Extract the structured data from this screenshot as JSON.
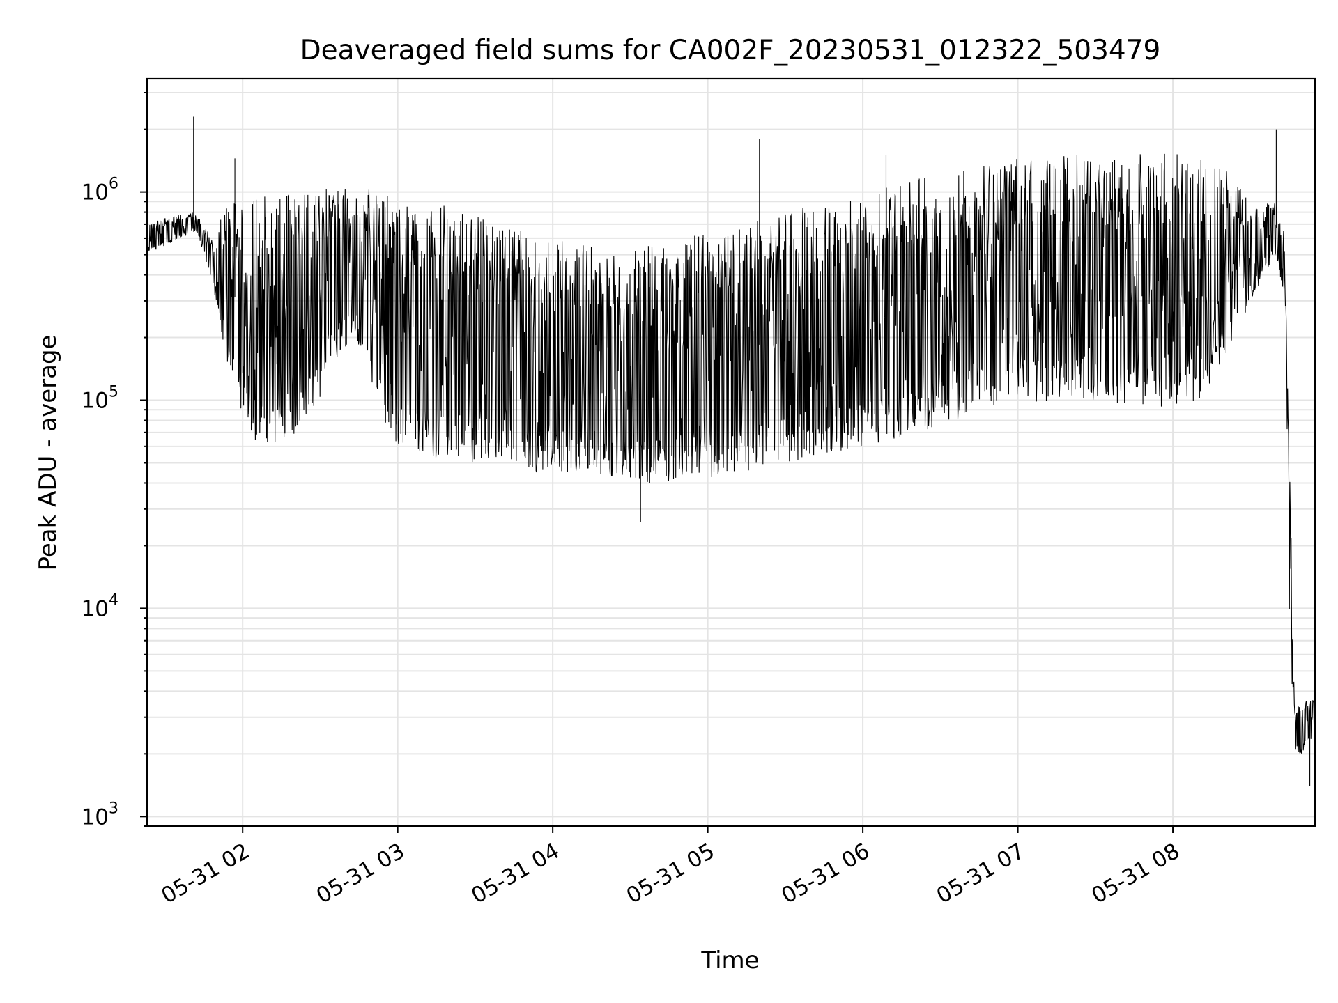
{
  "chart_data": {
    "type": "line",
    "title": "Deaveraged field sums for CA002F_20230531_012322_503479",
    "xlabel": "Time",
    "ylabel": "Peak ADU - average",
    "yscale": "log",
    "ylim": [
      900,
      3500000
    ],
    "xlim": [
      "2023-05-31 01:23",
      "2023-05-31 08:55"
    ],
    "x_ticks": [
      "05-31 02",
      "05-31 03",
      "05-31 04",
      "05-31 05",
      "05-31 06",
      "05-31 07",
      "05-31 08"
    ],
    "y_ticks": [
      {
        "value": 1000,
        "base": "10",
        "exp": "3"
      },
      {
        "value": 10000,
        "base": "10",
        "exp": "4"
      },
      {
        "value": 100000,
        "base": "10",
        "exp": "5"
      },
      {
        "value": 1000000,
        "base": "10",
        "exp": "6"
      }
    ],
    "grid": true,
    "line_color": "#000000",
    "series": [
      {
        "x": [
          "2023-05-31 01:23",
          "2023-05-31 01:30",
          "2023-05-31 01:36",
          "2023-05-31 01:42",
          "2023-05-31 01:48",
          "2023-05-31 01:54",
          "2023-05-31 02:00",
          "2023-05-31 02:06",
          "2023-05-31 02:12",
          "2023-05-31 02:18",
          "2023-05-31 02:24",
          "2023-05-31 02:30",
          "2023-05-31 02:36",
          "2023-05-31 02:42",
          "2023-05-31 02:48",
          "2023-05-31 02:54",
          "2023-05-31 03:00",
          "2023-05-31 03:10",
          "2023-05-31 03:20",
          "2023-05-31 03:30",
          "2023-05-31 03:40",
          "2023-05-31 03:50",
          "2023-05-31 04:00",
          "2023-05-31 04:15",
          "2023-05-31 04:30",
          "2023-05-31 04:45",
          "2023-05-31 05:00",
          "2023-05-31 05:15",
          "2023-05-31 05:30",
          "2023-05-31 05:45",
          "2023-05-31 06:00",
          "2023-05-31 06:15",
          "2023-05-31 06:30",
          "2023-05-31 06:45",
          "2023-05-31 07:00",
          "2023-05-31 07:15",
          "2023-05-31 07:30",
          "2023-05-31 07:45",
          "2023-05-31 08:00",
          "2023-05-31 08:10",
          "2023-05-31 08:20",
          "2023-05-31 08:30",
          "2023-05-31 08:40",
          "2023-05-31 08:43",
          "2023-05-31 08:45",
          "2023-05-31 08:47",
          "2023-05-31 08:50",
          "2023-05-31 08:55"
        ],
        "low": [
          500000,
          550000,
          600000,
          650000,
          380000,
          150000,
          80000,
          60000,
          55000,
          60000,
          80000,
          100000,
          150000,
          200000,
          150000,
          80000,
          60000,
          55000,
          50000,
          50000,
          50000,
          45000,
          45000,
          45000,
          40000,
          40000,
          42000,
          45000,
          50000,
          55000,
          60000,
          65000,
          75000,
          90000,
          95000,
          100000,
          100000,
          95000,
          90000,
          100000,
          150000,
          300000,
          500000,
          300000,
          10000,
          2000,
          2000,
          2500
        ],
        "high": [
          700000,
          750000,
          800000,
          800000,
          600000,
          900000,
          900000,
          950000,
          950000,
          1000000,
          1050000,
          1050000,
          1050000,
          1050000,
          1050000,
          1000000,
          900000,
          900000,
          850000,
          800000,
          700000,
          650000,
          600000,
          550000,
          550000,
          550000,
          650000,
          700000,
          800000,
          900000,
          1000000,
          1100000,
          1250000,
          1350000,
          1450000,
          1500000,
          1550000,
          1550000,
          1550000,
          1500000,
          1300000,
          900000,
          900000,
          700000,
          80000,
          3500,
          3500,
          3800
        ],
        "spikes": [
          {
            "x": "2023-05-31 01:41",
            "y": 2300000
          },
          {
            "x": "2023-05-31 01:57",
            "y": 1450000
          },
          {
            "x": "2023-05-31 05:20",
            "y": 1800000
          },
          {
            "x": "2023-05-31 06:09",
            "y": 1500000
          },
          {
            "x": "2023-05-31 08:40",
            "y": 2000000
          },
          {
            "x": "2023-05-31 04:34",
            "y": 26000
          },
          {
            "x": "2023-05-31 08:53",
            "y": 1400
          }
        ]
      }
    ]
  }
}
